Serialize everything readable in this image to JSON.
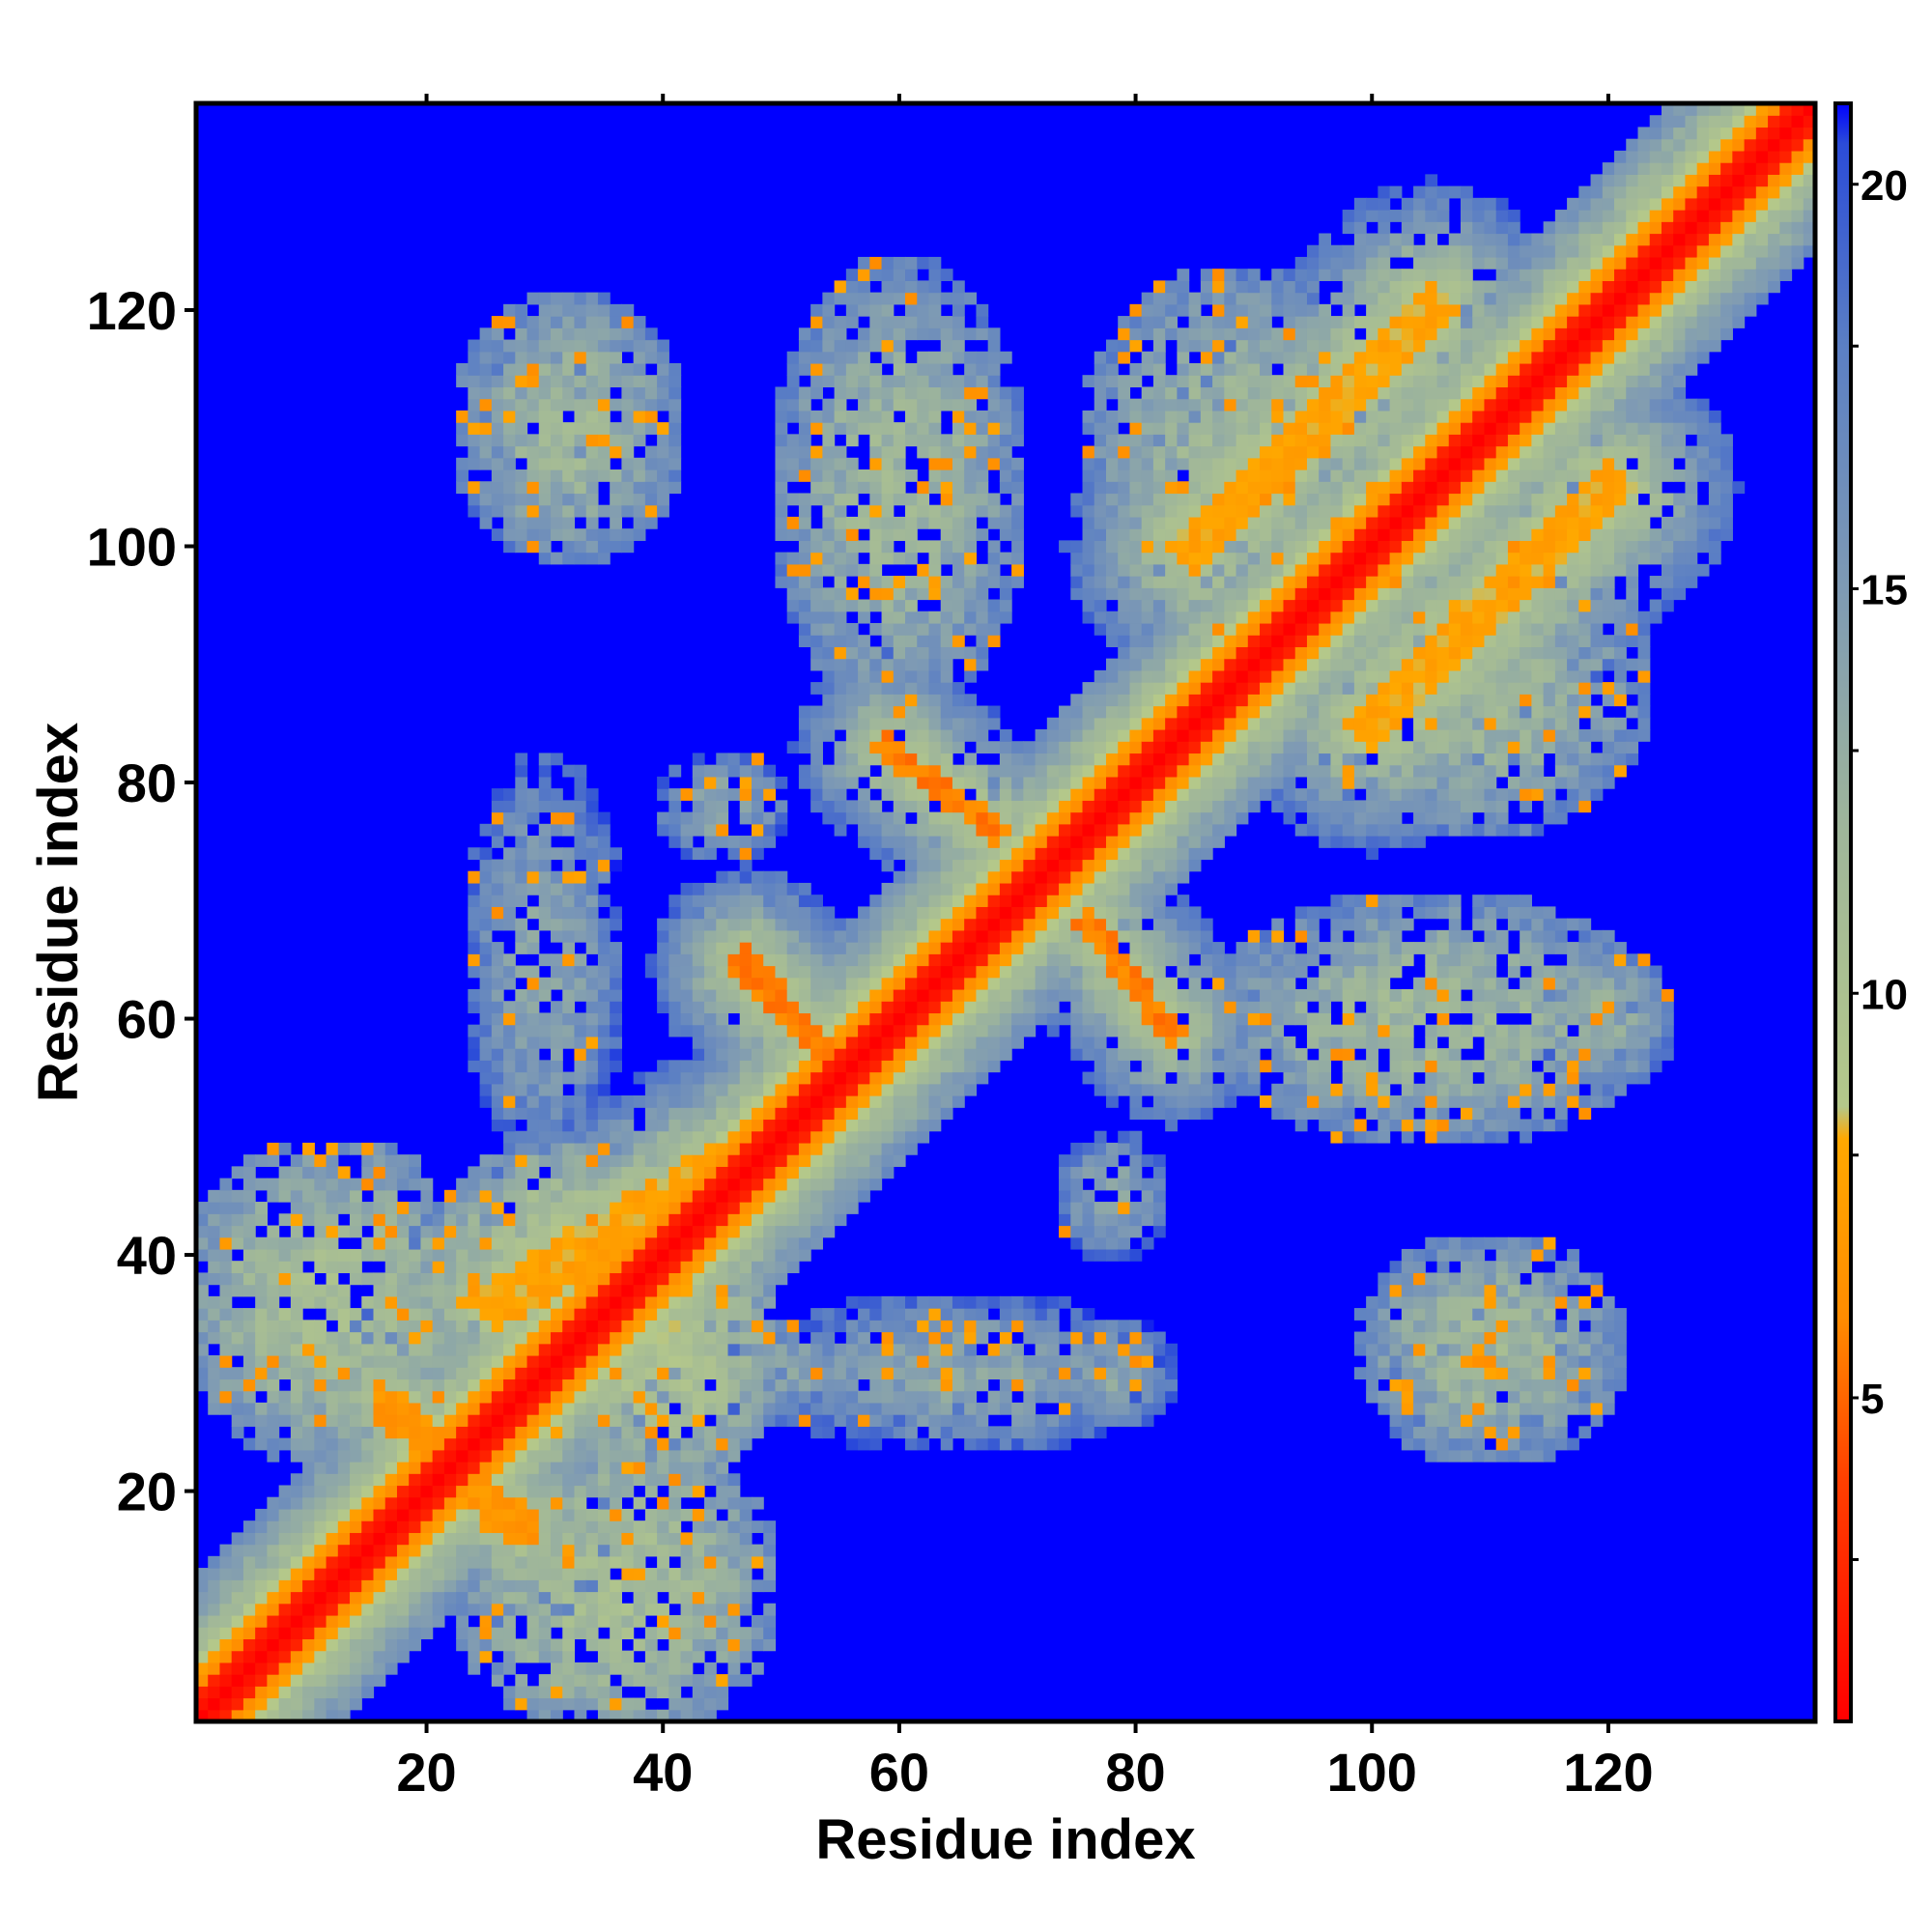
{
  "chart_data": {
    "type": "heatmap",
    "title": "",
    "xlabel": "Residue index",
    "ylabel": "Residue index",
    "n_residues": 137,
    "xlim": [
      1,
      137
    ],
    "ylim": [
      1,
      137
    ],
    "x_ticks": [
      20,
      40,
      60,
      80,
      100,
      120
    ],
    "x_tick_labels": [
      "20",
      "40",
      "60",
      "80",
      "100",
      "120"
    ],
    "y_ticks": [
      20,
      40,
      60,
      80,
      100,
      120
    ],
    "y_tick_labels": [
      "20",
      "40",
      "60",
      "80",
      "100",
      "120"
    ],
    "top_ticks": [
      20,
      40,
      60,
      80,
      100,
      120
    ],
    "colorbar": {
      "range": [
        1,
        21
      ],
      "ticks": [
        5,
        10,
        15,
        20
      ],
      "tick_labels": [
        "5",
        "10",
        "15",
        "20"
      ],
      "minor_ticks": [
        3,
        8,
        13,
        18
      ],
      "stops": [
        {
          "value": 1,
          "color": "#ff0000"
        },
        {
          "value": 4,
          "color": "#ff4000"
        },
        {
          "value": 6,
          "color": "#ff8c00"
        },
        {
          "value": 8.2,
          "color": "#ffa800"
        },
        {
          "value": 8.6,
          "color": "#b4c88a"
        },
        {
          "value": 12,
          "color": "#9fb69a"
        },
        {
          "value": 15,
          "color": "#7e9ab4"
        },
        {
          "value": 18,
          "color": "#5b7fc4"
        },
        {
          "value": 20.5,
          "color": "#2b4cd8"
        },
        {
          "value": 21,
          "color": "#0000ff"
        }
      ]
    },
    "background_value": 21,
    "diagonal_band": {
      "width_residues": 2,
      "value": 1
    },
    "contact_segments": [
      {
        "from": [
          53,
          58
        ],
        "to": [
          47,
          64
        ],
        "value": 5,
        "half_width": 1,
        "halo": 7
      },
      {
        "from": [
          59,
          83
        ],
        "to": [
          68,
          76
        ],
        "value": 5,
        "half_width": 1,
        "halo": 7
      },
      {
        "from": [
          47,
          65
        ],
        "to": [
          54,
          57
        ],
        "value": 5,
        "half_width": 1,
        "halo": 7
      },
      {
        "from": [
          76,
          68
        ],
        "to": [
          83,
          59
        ],
        "value": 5,
        "half_width": 1,
        "halo": 7
      },
      {
        "from": [
          17,
          27
        ],
        "to": [
          28,
          17
        ],
        "value": 6,
        "half_width": 1.5,
        "halo": 7
      },
      {
        "from": [
          26,
          36
        ],
        "to": [
          44,
          47
        ],
        "value": 7,
        "half_width": 2,
        "halo": 8
      },
      {
        "from": [
          100,
          85
        ],
        "to": [
          120,
          105
        ],
        "value": 7,
        "half_width": 2,
        "halo": 9
      },
      {
        "from": [
          85,
          100
        ],
        "to": [
          105,
          120
        ],
        "value": 7,
        "half_width": 2,
        "halo": 9
      }
    ],
    "contact_regions": [
      {
        "center": [
          12,
          36
        ],
        "radius": [
          14,
          14
        ],
        "value": 11
      },
      {
        "center": [
          36,
          12
        ],
        "radius": [
          14,
          14
        ],
        "value": 11
      },
      {
        "center": [
          32,
          40
        ],
        "radius": [
          12,
          10
        ],
        "value": 10
      },
      {
        "center": [
          40,
          32
        ],
        "radius": [
          10,
          12
        ],
        "value": 10
      },
      {
        "center": [
          32,
          110
        ],
        "radius": [
          10,
          12
        ],
        "value": 12
      },
      {
        "center": [
          60,
          105
        ],
        "radius": [
          11,
          20
        ],
        "value": 12
      },
      {
        "center": [
          88,
          108
        ],
        "radius": [
          13,
          16
        ],
        "value": 12
      },
      {
        "center": [
          108,
          88
        ],
        "radius": [
          16,
          13
        ],
        "value": 12
      },
      {
        "center": [
          105,
          60
        ],
        "radius": [
          20,
          11
        ],
        "value": 12
      },
      {
        "center": [
          110,
          32
        ],
        "radius": [
          12,
          10
        ],
        "value": 12
      },
      {
        "center": [
          30,
          65
        ],
        "radius": [
          7,
          18
        ],
        "value": 14
      },
      {
        "center": [
          65,
          30
        ],
        "radius": [
          18,
          7
        ],
        "value": 14
      },
      {
        "center": [
          45,
          78
        ],
        "radius": [
          6,
          5
        ],
        "value": 14
      },
      {
        "center": [
          78,
          45
        ],
        "radius": [
          5,
          6
        ],
        "value": 14
      },
      {
        "center": [
          50,
          30
        ],
        "radius": [
          6,
          5
        ],
        "value": 14
      },
      {
        "center": [
          62,
          30
        ],
        "radius": [
          5,
          5
        ],
        "value": 14
      },
      {
        "center": [
          78,
          30
        ],
        "radius": [
          6,
          5
        ],
        "value": 14
      },
      {
        "center": [
          110,
          30
        ],
        "radius": [
          9,
          6
        ],
        "value": 13
      },
      {
        "center": [
          30,
          110
        ],
        "radius": [
          6,
          9
        ],
        "value": 13
      },
      {
        "center": [
          120,
          60
        ],
        "radius": [
          6,
          6
        ],
        "value": 13
      }
    ]
  }
}
